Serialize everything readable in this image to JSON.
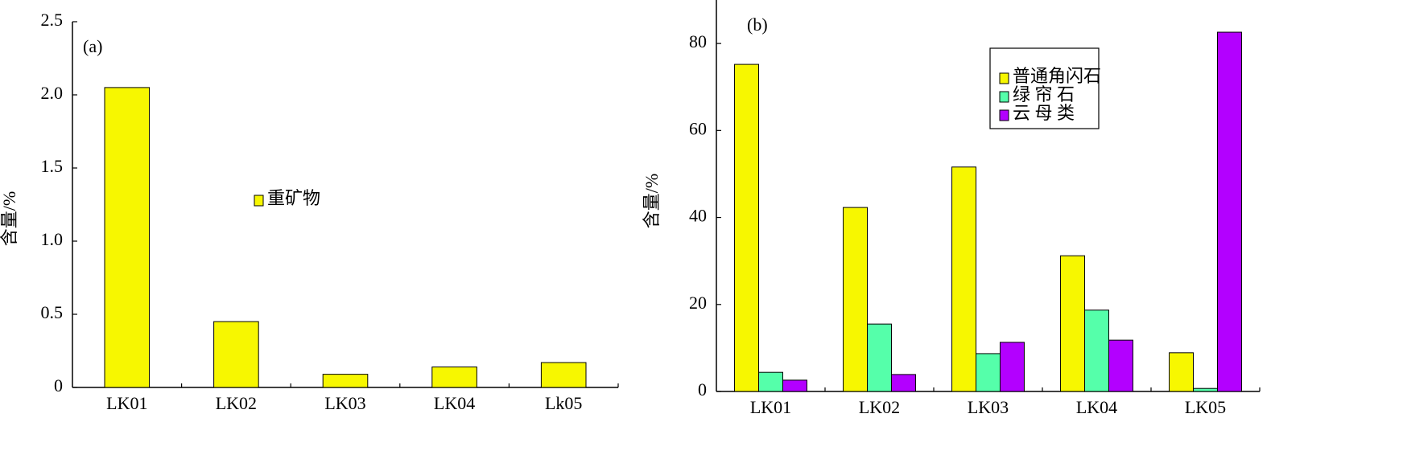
{
  "chart_data": [
    {
      "type": "bar",
      "annotation": "(a)",
      "y_label": "含量/%",
      "categories": [
        "LK01",
        "LK02",
        "LK03",
        "LK04",
        "Lk05"
      ],
      "series": [
        {
          "name": "重矿物",
          "color": "#f7f700",
          "values": [
            2.05,
            0.45,
            0.09,
            0.14,
            0.17
          ]
        }
      ],
      "ylim": [
        0,
        2.5
      ],
      "yticks": [
        0,
        0.5,
        {
          "value": 1,
          "label": "1.0"
        },
        1.5,
        {
          "value": 2,
          "label": "2.0"
        },
        2.5
      ],
      "legend": "center"
    },
    {
      "type": "bar",
      "annotation": "(b)",
      "y_label": "含量/%",
      "categories": [
        "LK01",
        "LK02",
        "LK03",
        "LK04",
        "LK05"
      ],
      "series": [
        {
          "name": "普通角闪石",
          "color": "#f7f700",
          "values": [
            75.2,
            42.3,
            51.6,
            31.2,
            8.9
          ]
        },
        {
          "name": "绿 帘 石",
          "color": "#55ffaa",
          "values": [
            4.4,
            15.5,
            8.7,
            18.7,
            0.7
          ]
        },
        {
          "name": "云 母 类",
          "color": "#b300ff",
          "values": [
            2.6,
            3.9,
            11.3,
            11.8,
            82.6
          ]
        }
      ],
      "ylim": [
        0,
        90
      ],
      "yticks": [
        0,
        20,
        40,
        60,
        80
      ],
      "legend": "upper center"
    }
  ]
}
